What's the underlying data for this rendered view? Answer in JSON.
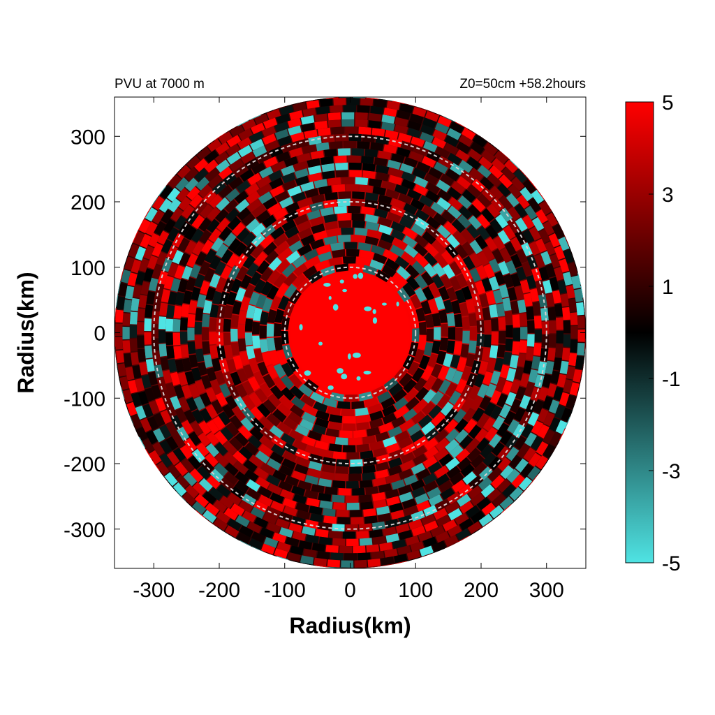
{
  "chart_data": {
    "type": "heatmap",
    "title_left": "PVU at  7000 m",
    "title_right": "Z0=50cm  +58.2hours",
    "xlabel": "Radius(km)",
    "ylabel": "Radius(km)",
    "xlim": [
      -360,
      360
    ],
    "ylim": [
      -360,
      360
    ],
    "xticks": [
      -300,
      -200,
      -100,
      0,
      100,
      200,
      300
    ],
    "yticks": [
      300,
      200,
      100,
      0,
      -100,
      -200,
      -300
    ],
    "domain_radius": 360,
    "reference_circles": [
      100,
      200,
      300
    ],
    "colorbar": {
      "min": -5,
      "max": 5,
      "ticks": [
        5,
        3,
        1,
        -1,
        -3,
        -5
      ],
      "colors": [
        "#4fe3e3",
        "#000000",
        "#ff0000"
      ]
    },
    "field_description": "Potential vorticity (PVU): saturated red core (>5 PVU) within ~100 km radius, surrounded by spiral bands of alternating red (positive) and cyan (negative) anomalies out to ~360 km"
  }
}
